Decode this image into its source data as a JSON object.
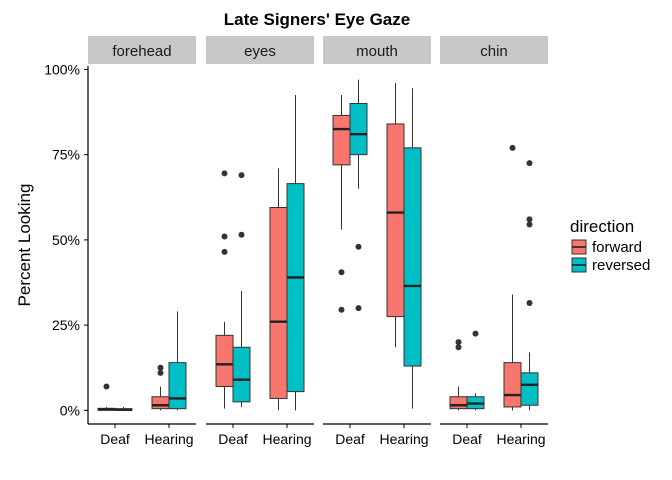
{
  "chart_data": {
    "type": "boxplot",
    "title": "Late Signers' Eye Gaze",
    "ylabel": "Percent Looking",
    "xlabel": "",
    "ylim": [
      -4,
      101
    ],
    "yticks": [
      0,
      25,
      50,
      75,
      100
    ],
    "ytick_labels": [
      "0%",
      "25%",
      "50%",
      "75%",
      "100%"
    ],
    "categories": [
      "Deaf",
      "Hearing"
    ],
    "grid": false,
    "legend": {
      "title": "direction",
      "position": "right",
      "items": [
        {
          "name": "forward",
          "color": "#F8766D"
        },
        {
          "name": "reversed",
          "color": "#00BFC4"
        }
      ]
    },
    "panels": [
      {
        "label": "forehead",
        "boxes": [
          {
            "category": "Deaf",
            "direction": "forward",
            "min": 0,
            "q1": 0,
            "median": 0.3,
            "q3": 0.6,
            "max": 1,
            "outliers": [
              7
            ]
          },
          {
            "category": "Deaf",
            "direction": "reversed",
            "min": 0,
            "q1": 0,
            "median": 0.2,
            "q3": 0.5,
            "max": 1,
            "outliers": []
          },
          {
            "category": "Hearing",
            "direction": "forward",
            "min": 0,
            "q1": 0.5,
            "median": 1.5,
            "q3": 4,
            "max": 7,
            "outliers": [
              11,
              12.5
            ]
          },
          {
            "category": "Hearing",
            "direction": "reversed",
            "min": 0,
            "q1": 0.5,
            "median": 3.5,
            "q3": 14,
            "max": 29,
            "outliers": []
          }
        ]
      },
      {
        "label": "eyes",
        "boxes": [
          {
            "category": "Deaf",
            "direction": "forward",
            "min": 0.5,
            "q1": 7,
            "median": 13.5,
            "q3": 22,
            "max": 26,
            "outliers": [
              46.5,
              51,
              69.5
            ]
          },
          {
            "category": "Deaf",
            "direction": "reversed",
            "min": 1,
            "q1": 2.5,
            "median": 9,
            "q3": 18.5,
            "max": 35,
            "outliers": [
              51.5,
              69
            ]
          },
          {
            "category": "Hearing",
            "direction": "forward",
            "min": 0,
            "q1": 3.5,
            "median": 26,
            "q3": 59.5,
            "max": 71,
            "outliers": []
          },
          {
            "category": "Hearing",
            "direction": "reversed",
            "min": 0,
            "q1": 5.5,
            "median": 39,
            "q3": 66.5,
            "max": 92.5,
            "outliers": []
          }
        ]
      },
      {
        "label": "mouth",
        "boxes": [
          {
            "category": "Deaf",
            "direction": "forward",
            "min": 53,
            "q1": 72,
            "median": 82.5,
            "q3": 86.5,
            "max": 92.5,
            "outliers": [
              29.5,
              40.5
            ]
          },
          {
            "category": "Deaf",
            "direction": "reversed",
            "min": 65,
            "q1": 75,
            "median": 81,
            "q3": 90,
            "max": 97,
            "outliers": [
              30,
              48
            ]
          },
          {
            "category": "Hearing",
            "direction": "forward",
            "min": 18.5,
            "q1": 27.5,
            "median": 58,
            "q3": 84,
            "max": 96,
            "outliers": []
          },
          {
            "category": "Hearing",
            "direction": "reversed",
            "min": 0.5,
            "q1": 13,
            "median": 36.5,
            "q3": 77,
            "max": 94.5,
            "outliers": []
          }
        ]
      },
      {
        "label": "chin",
        "boxes": [
          {
            "category": "Deaf",
            "direction": "forward",
            "min": 0,
            "q1": 0.5,
            "median": 1.5,
            "q3": 4,
            "max": 7,
            "outliers": [
              18.5,
              20
            ]
          },
          {
            "category": "Deaf",
            "direction": "reversed",
            "min": 0,
            "q1": 0.5,
            "median": 2,
            "q3": 4,
            "max": 5,
            "outliers": [
              22.5
            ]
          },
          {
            "category": "Hearing",
            "direction": "forward",
            "min": 0,
            "q1": 1,
            "median": 4.5,
            "q3": 14,
            "max": 34,
            "outliers": [
              77
            ]
          },
          {
            "category": "Hearing",
            "direction": "reversed",
            "min": 0,
            "q1": 1.5,
            "median": 7.5,
            "q3": 11,
            "max": 17,
            "outliers": [
              31.5,
              54.5,
              56,
              72.5
            ]
          }
        ]
      }
    ]
  }
}
